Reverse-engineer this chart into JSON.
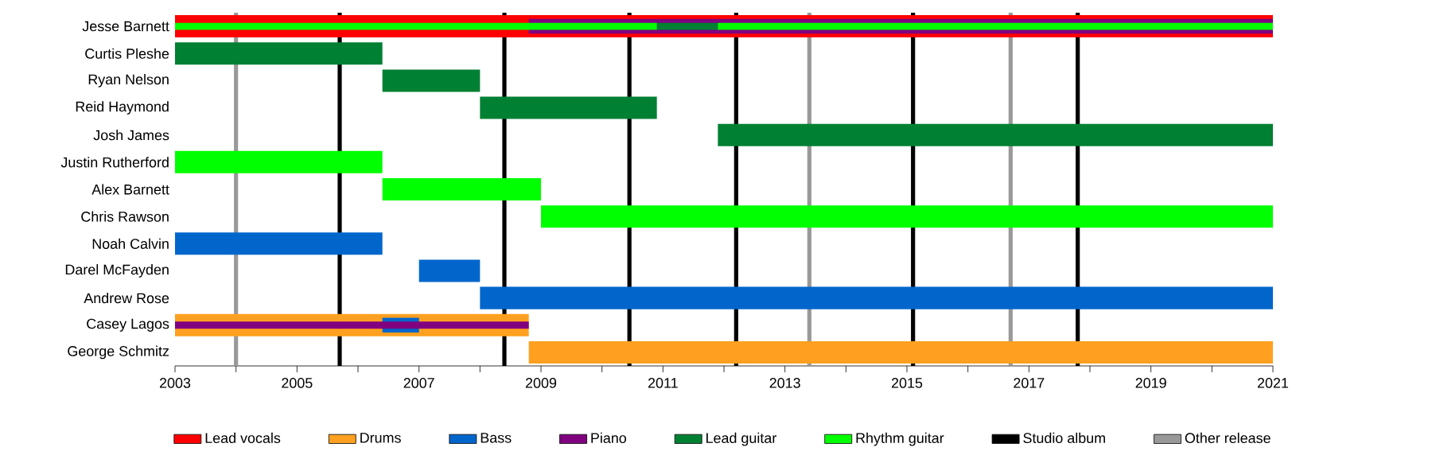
{
  "chart_data": {
    "type": "bar",
    "orientation": "horizontal",
    "categories": [
      "Jesse Barnett",
      "Curtis Pleshe",
      "Ryan Nelson",
      "Reid Haymond",
      "Josh James",
      "Justin Rutherford",
      "Alex Barnett",
      "Chris Rawson",
      "Noah Calvin",
      "Darel McFayden",
      "Andrew Rose",
      "Casey Lagos",
      "George Schmitz"
    ],
    "series": [
      {
        "name": "Lead vocals",
        "color": "#ff0000",
        "values": [
          18,
          null,
          null,
          null,
          null,
          null,
          null,
          null,
          null,
          null,
          null,
          null,
          null
        ],
        "base": [
          2003,
          null,
          null,
          null,
          null,
          null,
          null,
          null,
          null,
          null,
          null,
          null,
          null
        ]
      },
      {
        "name": "Drums",
        "color": "#ffa020",
        "values": [
          null,
          null,
          null,
          null,
          null,
          null,
          null,
          null,
          null,
          null,
          null,
          5.8,
          12.2
        ],
        "base": [
          null,
          null,
          null,
          null,
          null,
          null,
          null,
          null,
          null,
          null,
          null,
          2003,
          2008.8
        ]
      },
      {
        "name": "Bass",
        "color": "#0066cc",
        "values": [
          null,
          null,
          null,
          null,
          null,
          null,
          null,
          null,
          3.4,
          1,
          13,
          0.6,
          null
        ],
        "base": [
          null,
          null,
          null,
          null,
          null,
          null,
          null,
          null,
          2003,
          2007,
          2008,
          2006.4,
          null
        ]
      },
      {
        "name": "Piano",
        "color": "#800080",
        "values": [
          12.2,
          null,
          null,
          null,
          null,
          null,
          null,
          null,
          null,
          null,
          null,
          5.8,
          null
        ],
        "base": [
          2008.8,
          null,
          null,
          null,
          null,
          null,
          null,
          null,
          null,
          null,
          null,
          2003,
          null
        ]
      },
      {
        "name": "Lead guitar",
        "color": "#008033",
        "values": [
          1,
          3.4,
          1.6,
          2.9,
          9.1,
          null,
          null,
          null,
          null,
          null,
          null,
          null,
          null
        ],
        "base": [
          2010.9,
          2003,
          2006.4,
          2008,
          2011.9,
          null,
          null,
          null,
          null,
          null,
          null,
          null,
          null
        ]
      },
      {
        "name": "Rhythm guitar",
        "color": "#00ff00",
        "values": [
          7.9,
          null,
          null,
          null,
          null,
          3.4,
          2.6,
          12,
          null,
          null,
          null,
          null,
          null
        ],
        "base": [
          2003,
          null,
          null,
          null,
          null,
          2003,
          2006.4,
          2009,
          null,
          null,
          null,
          null,
          null
        ]
      },
      {
        "color": "#00ff00",
        "values": [
          9.1,
          null,
          null,
          null,
          null,
          null,
          null,
          null,
          null,
          null,
          null,
          null,
          null
        ],
        "base": [
          2011.9,
          null,
          null,
          null,
          null,
          null,
          null,
          null,
          null,
          null,
          null,
          null,
          null
        ]
      }
    ],
    "xlim": [
      2003,
      2021
    ],
    "xticks": [
      2003,
      {
        "value": 2004,
        "label": null
      },
      2005,
      {
        "value": 2006,
        "label": null
      },
      2007,
      {
        "value": 2008,
        "label": null
      },
      2009,
      {
        "value": 2010,
        "label": null
      },
      2011,
      {
        "value": 2012,
        "label": null
      },
      2013,
      {
        "value": 2014,
        "label": null
      },
      2015,
      {
        "value": 2016,
        "label": null
      },
      2017,
      {
        "value": 2018,
        "label": null
      },
      2019,
      {
        "value": 2020,
        "label": null
      },
      2021
    ],
    "ref_lines": [
      {
        "axis": "x",
        "value": 2005.7,
        "color": "#000000",
        "label": "Studio album"
      },
      {
        "axis": "x",
        "value": 2008.4,
        "color": "#000000"
      },
      {
        "axis": "x",
        "value": 2010.45,
        "color": "#000000"
      },
      {
        "axis": "x",
        "value": 2012.2,
        "color": "#000000"
      },
      {
        "axis": "x",
        "value": 2015.1,
        "color": "#000000"
      },
      {
        "axis": "x",
        "value": 2017.8,
        "color": "#000000"
      },
      {
        "axis": "x",
        "value": 2004.0,
        "color": "#999999",
        "label": "Other release"
      },
      {
        "axis": "x",
        "value": 2013.4,
        "color": "#999999"
      },
      {
        "axis": "x",
        "value": 2016.7,
        "color": "#999999"
      }
    ],
    "legend": "bottom",
    "grid": false
  }
}
